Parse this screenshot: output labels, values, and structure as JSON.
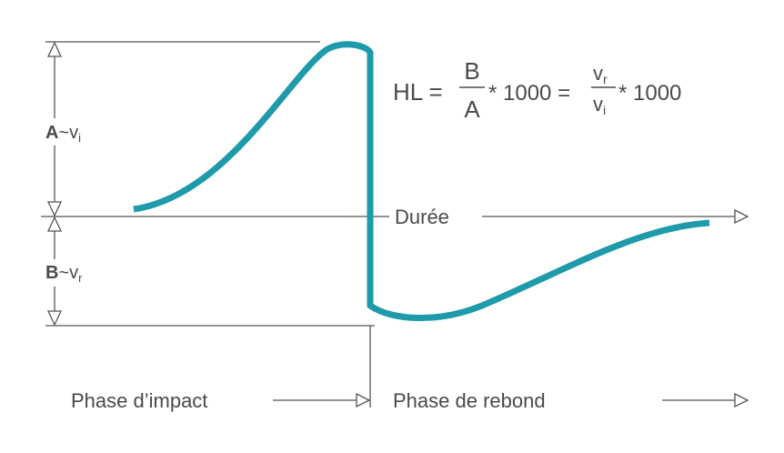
{
  "formula": {
    "lhs": "HL =",
    "frac1_num": "B",
    "frac1_den": "A",
    "mult1": "* 1000 =",
    "frac2_num": "v",
    "frac2_num_sub": "r",
    "frac2_den": "v",
    "frac2_den_sub": "i",
    "mult2": "* 1000"
  },
  "axis": {
    "label": "Durée"
  },
  "amplitudes": [
    {
      "letter": "A",
      "relation": "~v",
      "subscript": "i"
    },
    {
      "letter": "B",
      "relation": "~v",
      "subscript": "r"
    }
  ],
  "phases": [
    "Phase d’impact",
    "Phase de rebond"
  ]
}
